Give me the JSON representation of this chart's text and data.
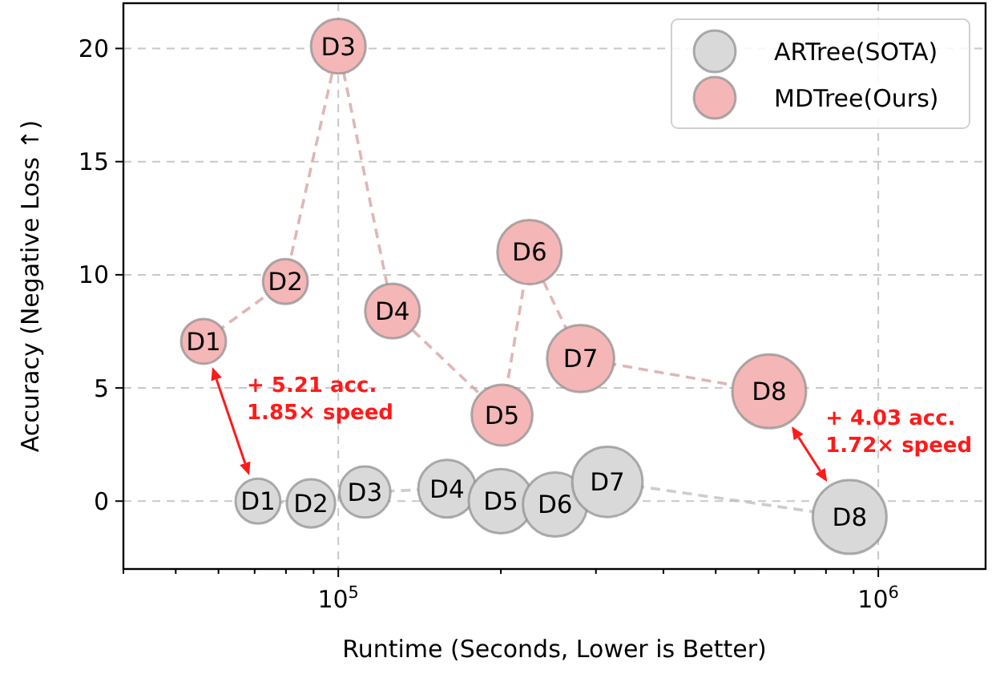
{
  "chart_data": {
    "type": "bubble",
    "xlabel": "Runtime (Seconds, Lower is Better)",
    "ylabel": "Accuracy (Negative Loss ↑)",
    "log": "x",
    "grid": true,
    "legend": "top right",
    "marker": "circle",
    "line_style": "dashed",
    "xlim": [
      40000,
      1580000
    ],
    "ylim": [
      -3,
      22
    ],
    "xticks": [
      {
        "value": 40000,
        "label": null
      },
      {
        "value": 50000,
        "label": null
      },
      {
        "value": 60000,
        "label": null
      },
      {
        "value": 70000,
        "label": null
      },
      {
        "value": 80000,
        "label": null
      },
      {
        "value": 90000,
        "label": null
      },
      {
        "value": 100000,
        "label": "10$^{5}$"
      },
      {
        "value": 200000,
        "label": null
      },
      {
        "value": 300000,
        "label": null
      },
      {
        "value": 400000,
        "label": null
      },
      {
        "value": 500000,
        "label": null
      },
      {
        "value": 600000,
        "label": null
      },
      {
        "value": 700000,
        "label": null
      },
      {
        "value": 800000,
        "label": null
      },
      {
        "value": 900000,
        "label": null
      },
      {
        "value": 1000000,
        "label": "10$^{6}$"
      }
    ],
    "yticks": [
      0,
      5,
      10,
      15,
      20
    ],
    "series": [
      {
        "name": "ARTree(SOTA)",
        "color": "#d9d9d9",
        "x": [
          71000,
          89000,
          112000,
          159000,
          200000,
          252000,
          315000,
          885000
        ],
        "values": [
          0.0,
          -0.1,
          0.4,
          0.55,
          0.0,
          -0.15,
          0.85,
          -0.7
        ],
        "sizes": [
          0.37,
          0.43,
          0.48,
          0.61,
          0.76,
          0.76,
          0.91,
          1
        ]
      },
      {
        "name": "MDTree(Ours)",
        "color": "#f4b6b6",
        "x": [
          56300,
          79800,
          100000,
          126000,
          201000,
          226000,
          281000,
          628000
        ],
        "values": [
          7.06,
          9.7,
          20.1,
          8.4,
          3.8,
          11.0,
          6.3,
          4.85
        ],
        "sizes": [
          0.37,
          0.37,
          0.55,
          0.55,
          0.68,
          0.76,
          0.83,
          1
        ]
      }
    ],
    "annotations": [
      {
        "text": "D1",
        "x": 71000,
        "y": 0.0
      },
      {
        "text": "D2",
        "x": 89000,
        "y": -0.1
      },
      {
        "text": "D3",
        "x": 112000,
        "y": 0.4
      },
      {
        "text": "D4",
        "x": 159000,
        "y": 0.55
      },
      {
        "text": "D5",
        "x": 200000,
        "y": 0.0
      },
      {
        "text": "D6",
        "x": 252000,
        "y": -0.15
      },
      {
        "text": "D7",
        "x": 315000,
        "y": 0.85
      },
      {
        "text": "D8",
        "x": 885000,
        "y": -0.7
      },
      {
        "text": "D1",
        "x": 56300,
        "y": 7.06
      },
      {
        "text": "D2",
        "x": 79800,
        "y": 9.7
      },
      {
        "text": "D3",
        "x": 100000,
        "y": 20.1
      },
      {
        "text": "D4",
        "x": 126000,
        "y": 8.4
      },
      {
        "text": "D5",
        "x": 201000,
        "y": 3.8
      },
      {
        "text": "D6",
        "x": 226000,
        "y": 11.0
      },
      {
        "text": "D7",
        "x": 281000,
        "y": 6.3
      },
      {
        "text": "D8",
        "x": 628000,
        "y": 4.85
      },
      {
        "text": "+ 5.21 acc.\n1.85× speed",
        "x": 56300,
        "y": 7.06
      },
      {
        "text": "+ 4.03 acc.\n1.72× speed",
        "x": 628000,
        "y": 4.85
      }
    ]
  }
}
